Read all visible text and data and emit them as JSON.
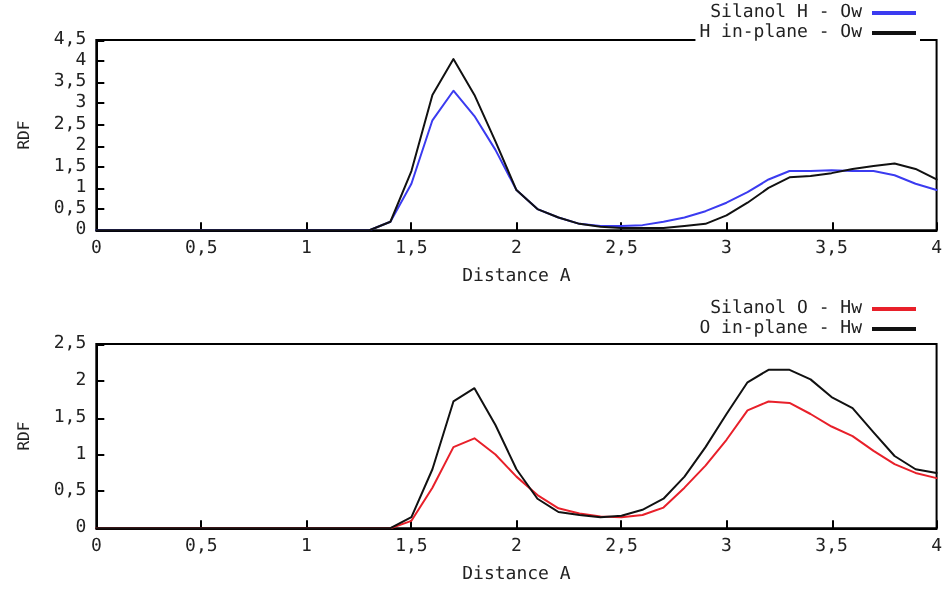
{
  "chart_data": [
    {
      "type": "line",
      "xlabel": "Distance A",
      "ylabel": "RDF",
      "x": [
        0,
        1.3,
        1.4,
        1.5,
        1.6,
        1.7,
        1.8,
        1.9,
        2.0,
        2.1,
        2.2,
        2.3,
        2.4,
        2.5,
        2.6,
        2.7,
        2.8,
        2.9,
        3.0,
        3.1,
        3.2,
        3.3,
        3.4,
        3.5,
        3.6,
        3.7,
        3.8,
        3.9,
        4.0
      ],
      "series": [
        {
          "name": "Silanol H - Ow",
          "color": "#3b3bf0",
          "values": [
            0,
            0,
            0.2,
            1.1,
            2.6,
            3.3,
            2.7,
            1.9,
            0.95,
            0.5,
            0.3,
            0.15,
            0.1,
            0.1,
            0.12,
            0.2,
            0.3,
            0.45,
            0.65,
            0.9,
            1.2,
            1.4,
            1.4,
            1.42,
            1.4,
            1.4,
            1.3,
            1.1,
            0.95
          ]
        },
        {
          "name": "H in-plane - Ow",
          "color": "#111111",
          "values": [
            0,
            0,
            0.2,
            1.4,
            3.2,
            4.05,
            3.2,
            2.1,
            0.95,
            0.5,
            0.3,
            0.15,
            0.08,
            0.05,
            0.05,
            0.05,
            0.1,
            0.15,
            0.35,
            0.65,
            1.0,
            1.25,
            1.28,
            1.35,
            1.45,
            1.52,
            1.58,
            1.45,
            1.2
          ]
        }
      ],
      "xlim": [
        0,
        4
      ],
      "xticks": [
        0,
        {
          "value": 0.5,
          "label": "0,5"
        },
        1,
        {
          "value": 1.5,
          "label": "1,5"
        },
        2,
        {
          "value": 2.5,
          "label": "2,5"
        },
        3,
        {
          "value": 3.5,
          "label": "3,5"
        },
        4
      ],
      "ylim": [
        0,
        4.5
      ],
      "yticks": [
        0,
        {
          "value": 0.5,
          "label": "0,5"
        },
        1,
        {
          "value": 1.5,
          "label": "1,5"
        },
        2,
        {
          "value": 2.5,
          "label": "2,5"
        },
        3,
        {
          "value": 3.5,
          "label": "3,5"
        },
        4,
        {
          "value": 4.5,
          "label": "4,5"
        }
      ],
      "grid": false,
      "legend": "top right",
      "marker": "none",
      "line_style": "solid"
    },
    {
      "type": "line",
      "xlabel": "Distance A",
      "ylabel": "RDF",
      "x": [
        0,
        1.4,
        1.5,
        1.6,
        1.7,
        1.8,
        1.9,
        2.0,
        2.1,
        2.2,
        2.3,
        2.4,
        2.5,
        2.6,
        2.7,
        2.8,
        2.9,
        3.0,
        3.1,
        3.2,
        3.3,
        3.4,
        3.5,
        3.6,
        3.7,
        3.8,
        3.9,
        4.0
      ],
      "series": [
        {
          "name": "Silanol O - Hw",
          "color": "#e8202a",
          "values": [
            0,
            0,
            0.1,
            0.55,
            1.1,
            1.22,
            1.0,
            0.7,
            0.45,
            0.27,
            0.2,
            0.16,
            0.15,
            0.18,
            0.28,
            0.55,
            0.85,
            1.2,
            1.6,
            1.72,
            1.7,
            1.55,
            1.38,
            1.25,
            1.05,
            0.87,
            0.75,
            0.68
          ]
        },
        {
          "name": "O in-plane - Hw",
          "color": "#111111",
          "values": [
            0,
            0,
            0.15,
            0.8,
            1.72,
            1.9,
            1.4,
            0.8,
            0.4,
            0.22,
            0.18,
            0.15,
            0.17,
            0.25,
            0.4,
            0.7,
            1.1,
            1.55,
            1.98,
            2.15,
            2.15,
            2.02,
            1.78,
            1.63,
            1.3,
            0.98,
            0.8,
            0.75
          ]
        }
      ],
      "xlim": [
        0,
        4
      ],
      "xticks": [
        0,
        {
          "value": 0.5,
          "label": "0,5"
        },
        1,
        {
          "value": 1.5,
          "label": "1,5"
        },
        2,
        {
          "value": 2.5,
          "label": "2,5"
        },
        3,
        {
          "value": 3.5,
          "label": "3,5"
        },
        4
      ],
      "ylim": [
        0,
        2.5
      ],
      "yticks": [
        0,
        {
          "value": 0.5,
          "label": "0,5"
        },
        1,
        {
          "value": 1.5,
          "label": "1,5"
        },
        2,
        {
          "value": 2.5,
          "label": "2,5"
        }
      ],
      "grid": false,
      "legend": "top right",
      "marker": "none",
      "line_style": "solid"
    }
  ]
}
